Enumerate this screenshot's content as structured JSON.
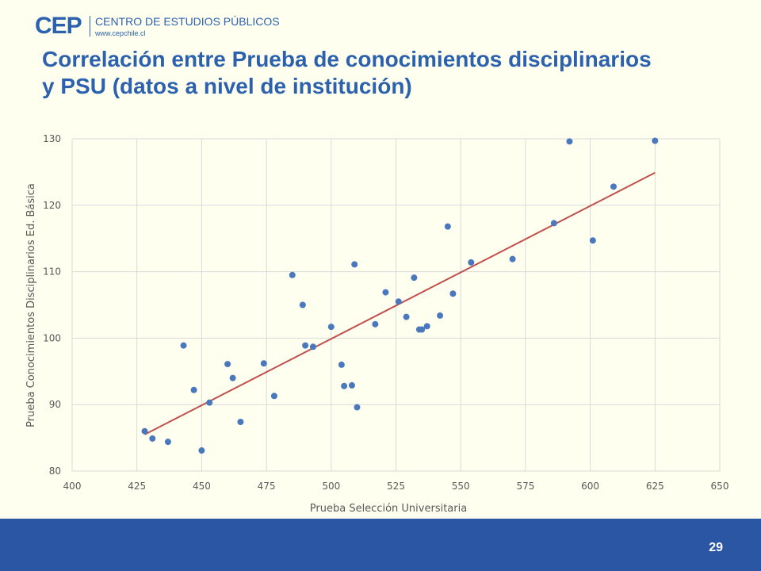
{
  "logo": {
    "short": "CEP",
    "name": "CENTRO DE ESTUDIOS PÚBLICOS",
    "url": "www.cepchile.cl"
  },
  "title": {
    "line1": "Correlación entre Prueba de conocimientos disciplinarios",
    "line2": "y PSU (datos a nivel de institución)"
  },
  "footer": {
    "page_number": "29"
  },
  "colors": {
    "brand": "#2b61ad",
    "footer": "#2b56a4",
    "background": "#fffff0",
    "points": "#4a78bd",
    "trendline": "#c0504d",
    "grid": "#d9d9d9",
    "axis_text": "#595959"
  },
  "chart_data": {
    "type": "scatter",
    "title": "",
    "xlabel": "Prueba Selección Universitaria",
    "ylabel": "Prueba Conocimientos Disciplinarios Ed. Básica",
    "xlim": [
      400,
      650
    ],
    "ylim": [
      80,
      130
    ],
    "xticks": [
      400,
      425,
      450,
      475,
      500,
      525,
      550,
      575,
      600,
      625,
      650
    ],
    "yticks": [
      80,
      90,
      100,
      110,
      120,
      130
    ],
    "grid": true,
    "legend": "none",
    "points": [
      [
        428,
        86
      ],
      [
        431,
        84.9
      ],
      [
        437,
        84.4
      ],
      [
        443,
        98.9
      ],
      [
        447,
        92.2
      ],
      [
        450,
        83.1
      ],
      [
        453,
        90.3
      ],
      [
        460,
        96.1
      ],
      [
        462,
        94
      ],
      [
        465,
        87.4
      ],
      [
        474,
        96.2
      ],
      [
        478,
        91.3
      ],
      [
        485,
        109.5
      ],
      [
        489,
        105
      ],
      [
        490,
        98.9
      ],
      [
        493,
        98.7
      ],
      [
        500,
        101.7
      ],
      [
        504,
        96
      ],
      [
        505,
        92.8
      ],
      [
        508,
        92.9
      ],
      [
        509,
        111.1
      ],
      [
        510,
        89.6
      ],
      [
        517,
        102.1
      ],
      [
        521,
        106.9
      ],
      [
        526,
        105.5
      ],
      [
        529,
        103.2
      ],
      [
        532,
        109.1
      ],
      [
        534,
        101.3
      ],
      [
        535,
        101.3
      ],
      [
        537,
        101.8
      ],
      [
        542,
        103.4
      ],
      [
        545,
        116.8
      ],
      [
        547,
        106.7
      ],
      [
        554,
        111.4
      ],
      [
        570,
        111.9
      ],
      [
        586,
        117.3
      ],
      [
        592,
        129.6
      ],
      [
        601,
        114.7
      ],
      [
        609,
        122.8
      ],
      [
        625,
        129.7
      ]
    ],
    "trendline": {
      "type": "linear",
      "x": [
        428,
        625
      ],
      "y": [
        85.5,
        124.9
      ]
    }
  }
}
